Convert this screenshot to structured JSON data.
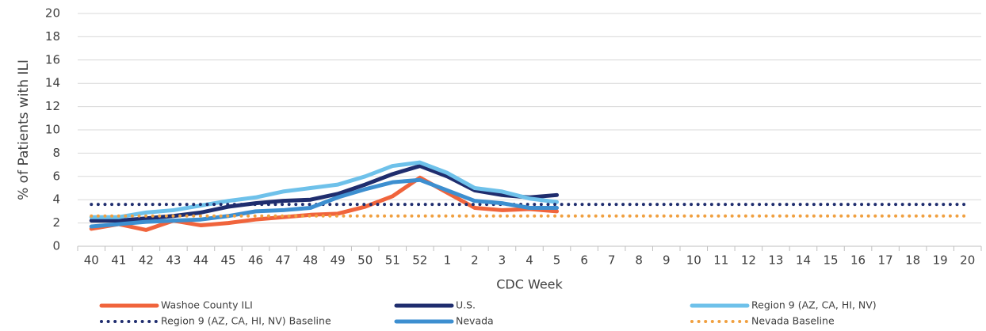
{
  "chart_data": {
    "type": "line",
    "x_label": "CDC Week",
    "y_label": "% of Patients with ILI",
    "categories": [
      "40",
      "41",
      "42",
      "43",
      "44",
      "45",
      "46",
      "47",
      "48",
      "49",
      "50",
      "51",
      "52",
      "1",
      "2",
      "3",
      "4",
      "5",
      "6",
      "7",
      "8",
      "9",
      "10",
      "11",
      "12",
      "13",
      "14",
      "15",
      "16",
      "17",
      "18",
      "19",
      "20"
    ],
    "ylim": [
      0,
      20
    ],
    "yticks": [
      0,
      2,
      4,
      6,
      8,
      10,
      12,
      14,
      16,
      18,
      20
    ],
    "grid": true,
    "legend": "bottom",
    "series": [
      {
        "name": "Washoe County ILI",
        "color": "#f0643c",
        "style": "solid",
        "values": [
          1.5,
          1.9,
          1.4,
          2.2,
          1.8,
          2.0,
          2.3,
          2.5,
          2.7,
          2.8,
          3.4,
          4.3,
          5.9,
          4.6,
          3.3,
          3.1,
          3.2,
          3.0,
          null,
          null,
          null,
          null,
          null,
          null,
          null,
          null,
          null,
          null,
          null,
          null,
          null,
          null,
          null
        ]
      },
      {
        "name": "U.S.",
        "color": "#1f2d6e",
        "style": "solid",
        "values": [
          2.2,
          2.2,
          2.4,
          2.6,
          2.9,
          3.4,
          3.7,
          3.9,
          4.0,
          4.5,
          5.3,
          6.2,
          6.9,
          6.0,
          4.8,
          4.4,
          4.2,
          4.4,
          null,
          null,
          null,
          null,
          null,
          null,
          null,
          null,
          null,
          null,
          null,
          null,
          null,
          null,
          null
        ]
      },
      {
        "name": "Region 9 (AZ, CA, HI, NV)",
        "color": "#6ec1ea",
        "style": "solid",
        "values": [
          2.5,
          2.5,
          2.9,
          3.1,
          3.5,
          3.9,
          4.2,
          4.7,
          5.0,
          5.3,
          6.0,
          6.9,
          7.2,
          6.3,
          5.0,
          4.7,
          4.1,
          3.8,
          null,
          null,
          null,
          null,
          null,
          null,
          null,
          null,
          null,
          null,
          null,
          null,
          null,
          null,
          null
        ]
      },
      {
        "name": "Region 9 (AZ, CA, HI, NV) Baseline",
        "color": "#1f2d6e",
        "style": "dotted",
        "values": [
          3.6,
          3.6,
          3.6,
          3.6,
          3.6,
          3.6,
          3.6,
          3.6,
          3.6,
          3.6,
          3.6,
          3.6,
          3.6,
          3.6,
          3.6,
          3.6,
          3.6,
          3.6,
          3.6,
          3.6,
          3.6,
          3.6,
          3.6,
          3.6,
          3.6,
          3.6,
          3.6,
          3.6,
          3.6,
          3.6,
          3.6,
          3.6,
          3.6
        ]
      },
      {
        "name": "Nevada",
        "color": "#3d8fd0",
        "style": "solid",
        "values": [
          1.7,
          1.9,
          2.1,
          2.2,
          2.3,
          2.6,
          3.0,
          3.1,
          3.3,
          4.2,
          4.9,
          5.5,
          5.7,
          4.8,
          3.9,
          3.7,
          3.3,
          3.3,
          null,
          null,
          null,
          null,
          null,
          null,
          null,
          null,
          null,
          null,
          null,
          null,
          null,
          null,
          null
        ]
      },
      {
        "name": "Nevada Baseline",
        "color": "#f0a040",
        "style": "dotted",
        "values": [
          2.6,
          2.6,
          2.6,
          2.6,
          2.6,
          2.6,
          2.6,
          2.6,
          2.6,
          2.6,
          2.6,
          2.6,
          2.6,
          2.6,
          2.6,
          2.6,
          2.6,
          2.6,
          2.6,
          2.6,
          2.6,
          2.6,
          2.6,
          2.6,
          2.6,
          2.6,
          2.6,
          2.6,
          2.6,
          2.6,
          2.6,
          2.6,
          2.6
        ]
      }
    ]
  }
}
